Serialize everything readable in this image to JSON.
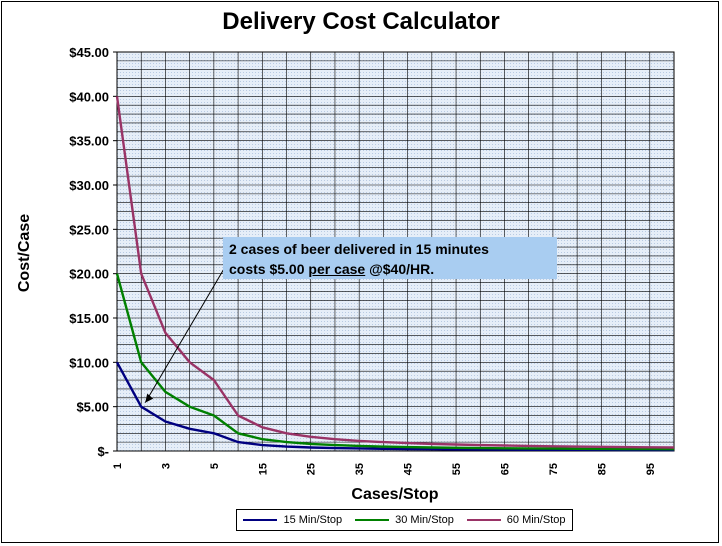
{
  "chart_data": {
    "type": "line",
    "title": "Delivery Cost Calculator",
    "xlabel": "Cases/Stop",
    "ylabel": "Cost/Case",
    "x_tick_labels": [
      "1",
      "3",
      "5",
      "15",
      "25",
      "35",
      "45",
      "55",
      "65",
      "75",
      "85",
      "95"
    ],
    "y_tick_labels": [
      "$-",
      "$5.00",
      "$10.00",
      "$15.00",
      "$20.00",
      "$25.00",
      "$30.00",
      "$35.00",
      "$40.00",
      "$45.00"
    ],
    "ylim": [
      0,
      45
    ],
    "categories": [
      1,
      2,
      3,
      4,
      5,
      10,
      15,
      20,
      25,
      30,
      35,
      40,
      45,
      50,
      55,
      60,
      65,
      70,
      75,
      80,
      85,
      90,
      95,
      100
    ],
    "series": [
      {
        "name": "15 Min/Stop",
        "color": "#000080",
        "values": [
          10,
          5,
          3.33,
          2.5,
          2,
          1,
          0.67,
          0.5,
          0.4,
          0.33,
          0.29,
          0.25,
          0.22,
          0.2,
          0.18,
          0.17,
          0.15,
          0.14,
          0.13,
          0.13,
          0.12,
          0.11,
          0.11,
          0.1
        ]
      },
      {
        "name": "30 Min/Stop",
        "color": "#008000",
        "values": [
          20,
          10,
          6.67,
          5,
          4,
          2,
          1.33,
          1,
          0.8,
          0.67,
          0.57,
          0.5,
          0.44,
          0.4,
          0.36,
          0.33,
          0.31,
          0.29,
          0.27,
          0.25,
          0.24,
          0.22,
          0.21,
          0.2
        ]
      },
      {
        "name": "60 Min/Stop",
        "color": "#993366",
        "values": [
          40,
          20,
          13.33,
          10,
          8,
          4,
          2.67,
          2,
          1.6,
          1.33,
          1.14,
          1,
          0.89,
          0.8,
          0.73,
          0.67,
          0.62,
          0.57,
          0.53,
          0.5,
          0.47,
          0.44,
          0.42,
          0.4
        ]
      }
    ],
    "grid": true,
    "legend_position": "bottom",
    "annotation": {
      "line1": "2 cases of beer delivered in 15 minutes",
      "line2_prefix": "costs $5.00 ",
      "line2_underlined": "per case",
      "line2_suffix": " @$40/HR."
    }
  }
}
